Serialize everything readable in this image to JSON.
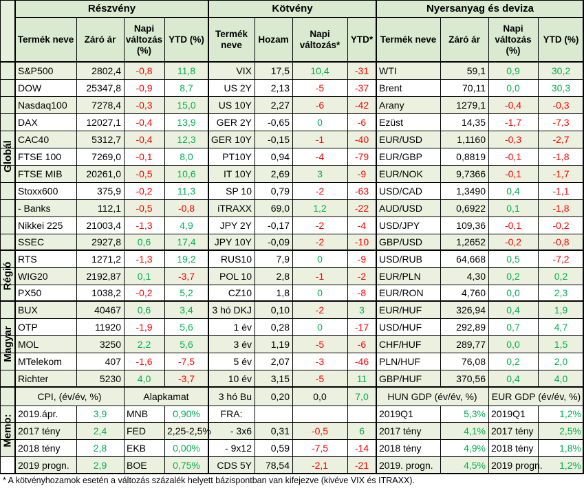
{
  "headers": {
    "equity": "Részvény",
    "bonds": "Kötvény",
    "commod": "Nyersanyag és deviza"
  },
  "subheaders": {
    "eq": [
      "Termék neve",
      "Záró ár",
      "Napi változás (%)",
      "YTD (%)"
    ],
    "bd": [
      "Termék neve",
      "Hozam",
      "Napi változás*",
      "YTD*"
    ],
    "cm": [
      "Termék neve",
      "Záró ár",
      "Napi változás (%)",
      "YTD (%)"
    ]
  },
  "sections": {
    "global": "Globál",
    "region": "Régió",
    "hungary": "Magyar",
    "memo": "Memo:"
  },
  "rows": [
    [
      [
        "S&P500",
        "2802,4",
        "-0,8",
        "11,8"
      ],
      [
        "VIX",
        "17,5",
        "10,4",
        "-31"
      ],
      [
        "WTI",
        "59,1",
        "0,9",
        "30,2"
      ]
    ],
    [
      [
        "DOW",
        "25347,8",
        "-0,9",
        "8,7"
      ],
      [
        "US 2Y",
        "2,13",
        "-5",
        "-37"
      ],
      [
        "Brent",
        "70,11",
        "0,0",
        "30,3"
      ]
    ],
    [
      [
        "Nasdaq100",
        "7278,4",
        "-0,3",
        "15,0"
      ],
      [
        "US 10Y",
        "2,27",
        "-6",
        "-42"
      ],
      [
        "Arany",
        "1279,1",
        "-0,4",
        "-0,3"
      ]
    ],
    [
      [
        "DAX",
        "12027,1",
        "-0,4",
        "13,9"
      ],
      [
        "GER 2Y",
        "-0,65",
        "0",
        "-6"
      ],
      [
        "Ezüst",
        "14,35",
        "-1,7",
        "-7,3"
      ]
    ],
    [
      [
        "CAC40",
        "5312,7",
        "-0,4",
        "12,3"
      ],
      [
        "GER 10Y",
        "-0,15",
        "-1",
        "-40"
      ],
      [
        "EUR/USD",
        "1,1160",
        "-0,3",
        "-2,7"
      ]
    ],
    [
      [
        "FTSE 100",
        "7269,0",
        "-0,1",
        "8,0"
      ],
      [
        "PT10Y",
        "0,94",
        "-4",
        "-79"
      ],
      [
        "EUR/GBP",
        "0,8819",
        "-0,1",
        "-1,8"
      ]
    ],
    [
      [
        "FTSE MIB",
        "20261,0",
        "-0,5",
        "10,6"
      ],
      [
        "IT 10Y",
        "2,69",
        "3",
        "-9"
      ],
      [
        "EUR/NOK",
        "9,7366",
        "-0,1",
        "-1,7"
      ]
    ],
    [
      [
        "Stoxx600",
        "375,9",
        "-0,2",
        "11,3"
      ],
      [
        "SP 10",
        "0,79",
        "-2",
        "-63"
      ],
      [
        "USD/CAD",
        "1,3490",
        "0,4",
        "-1,1"
      ]
    ],
    [
      [
        " - Banks",
        "112,1",
        "-0,5",
        "-0,8"
      ],
      [
        "iTRAXX",
        "69,0",
        "1,2",
        "-22"
      ],
      [
        "AUD/USD",
        "0,6922",
        "0,1",
        "-1,8"
      ]
    ],
    [
      [
        "Nikkei 225",
        "21003,4",
        "-1,3",
        "4,9"
      ],
      [
        "JPY 2Y",
        "-0,17",
        "-2",
        "-4"
      ],
      [
        "USD/JPY",
        "109,36",
        "-0,1",
        "-0,2"
      ]
    ],
    [
      [
        "SSEC",
        "2927,8",
        "0,6",
        "17,4"
      ],
      [
        "JPY 10Y",
        "-0,09",
        "-2",
        "-10"
      ],
      [
        "GBP/USD",
        "1,2652",
        "-0,2",
        "-0,8"
      ]
    ],
    [
      [
        "RTS",
        "1271,2",
        "-1,3",
        "19,2"
      ],
      [
        "RUS10",
        "7,9",
        "0",
        "-9"
      ],
      [
        "USD/RUB",
        "64,668",
        "0,5",
        "-7,2"
      ]
    ],
    [
      [
        "WIG20",
        "2192,87",
        "0,1",
        "-3,7"
      ],
      [
        "POL 10",
        "2,8",
        "-1",
        "-2"
      ],
      [
        "EUR/PLN",
        "4,30",
        "0,2",
        "0,2"
      ]
    ],
    [
      [
        "PX50",
        "1038,2",
        "-0,2",
        "5,2"
      ],
      [
        "CZ10",
        "1,8",
        "0",
        "-8"
      ],
      [
        "EUR/RON",
        "4,760",
        "0,0",
        "2,3"
      ]
    ],
    [
      [
        "BUX",
        "40467",
        "0,6",
        "3,4"
      ],
      [
        "3 hó DKJ",
        "0,10",
        "-2",
        "3"
      ],
      [
        "EUR/HUF",
        "326,94",
        "0,4",
        "1,9"
      ]
    ],
    [
      [
        "OTP",
        "11920",
        "-1,9",
        "5,6"
      ],
      [
        "1 év",
        "0,28",
        "0",
        "-17"
      ],
      [
        "USD/HUF",
        "292,89",
        "0,7",
        "4,7"
      ]
    ],
    [
      [
        "MOL",
        "3250",
        "2,2",
        "5,6"
      ],
      [
        "3 év",
        "1,19",
        "-5",
        "-6"
      ],
      [
        "CHF/HUF",
        "289,77",
        "0,0",
        "1,5"
      ]
    ],
    [
      [
        "MTelekom",
        "407",
        "-1,6",
        "-7,5"
      ],
      [
        "5 év",
        "2,07",
        "-3",
        "-46"
      ],
      [
        "PLN/HUF",
        "76,08",
        "0,2",
        "2,0"
      ]
    ],
    [
      [
        "Richter",
        "5230",
        "4,0",
        "-3,7"
      ],
      [
        "10 év",
        "3,15",
        "-5",
        "11"
      ],
      [
        "GBP/HUF",
        "370,56",
        "0,4",
        "4,0"
      ]
    ]
  ],
  "memo": {
    "cpi_title": "CPI, (év/év, %)",
    "rate_title": "Alapkamat",
    "hun_gdp_title": "HUN GDP (év/év, %)",
    "eur_gdp_title": "EUR GDP (év/év, %)",
    "cpi": [
      [
        "2019.ápr.",
        "3,9"
      ],
      [
        "2017 tény",
        "2,4"
      ],
      [
        "2018 tény",
        "2,8"
      ],
      [
        "2019 progn.",
        "2,9"
      ]
    ],
    "rates": [
      [
        "MNB",
        "0,90%"
      ],
      [
        "FED",
        "2,25-2,5%"
      ],
      [
        "EKB",
        "0,00%"
      ],
      [
        "BOE",
        "0,75%"
      ]
    ],
    "bond_rows": [
      [
        "3 hó Bu",
        "0,20",
        "0,0",
        "7,0"
      ],
      [
        "FRA:",
        "",
        "",
        ""
      ],
      [
        " - 3x6",
        "0,31",
        "-0,5",
        "6"
      ],
      [
        " - 9x12",
        "0,59",
        "-7,5",
        "-14"
      ],
      [
        "CDS 5Y",
        "78,54",
        "-2,1",
        "-21"
      ]
    ],
    "hun_gdp": [
      [
        "2019Q1",
        "5,3%"
      ],
      [
        "2017 tény",
        "4,1%"
      ],
      [
        "2018 tény",
        "4,9%"
      ],
      [
        "2019. progn.",
        "4,5%"
      ]
    ],
    "eur_gdp": [
      [
        "2019Q1",
        "1,2%"
      ],
      [
        "2017 tény",
        "2,5%"
      ],
      [
        "2018 tény",
        "1,8%"
      ],
      [
        "2019 progn.",
        "1,2%"
      ]
    ]
  },
  "footnote": "* A kötvényhozamok esetén a változás százalék helyett bázispontban van kifejezve (kivéve VIX és ITRAXX).",
  "colors": {
    "header_band": "#d9ead0",
    "row_band": "#ebf1de",
    "sidebar": "#e6f0dc",
    "positive": "#00b050",
    "negative": "#ff0000"
  }
}
